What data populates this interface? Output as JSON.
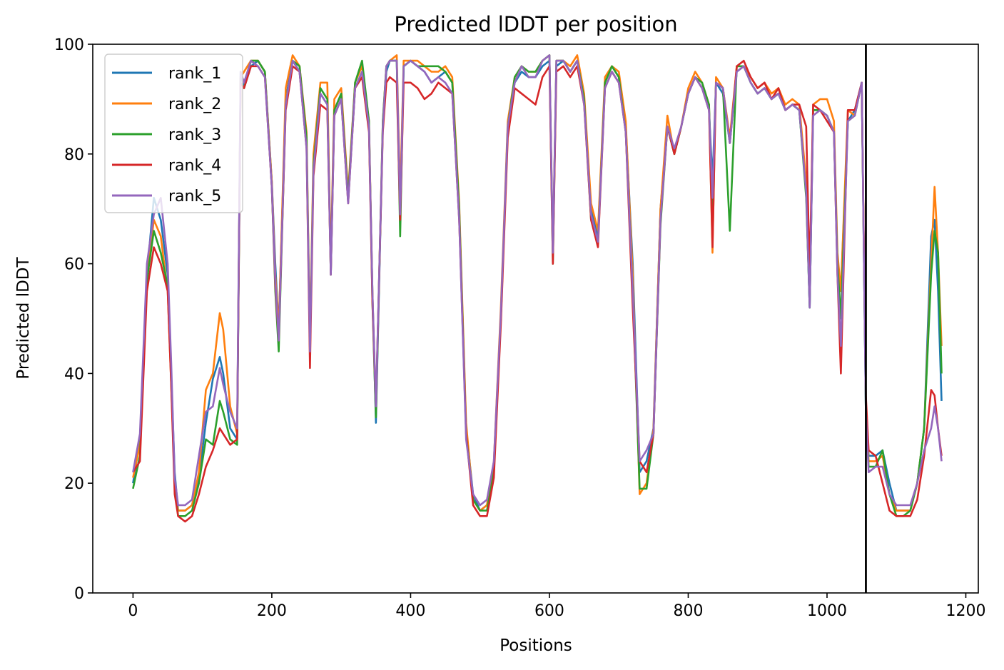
{
  "chart_data": {
    "type": "line",
    "title": "Predicted lDDT per position",
    "xlabel": "Positions",
    "ylabel": "Predicted lDDT",
    "xlim": [
      -58,
      1218
    ],
    "ylim": [
      0,
      100
    ],
    "xticks": [
      0,
      200,
      400,
      600,
      800,
      1000,
      1200
    ],
    "yticks": [
      0,
      20,
      40,
      60,
      80,
      100
    ],
    "grid": false,
    "legend_position": "top-left",
    "vline": {
      "x": 1056,
      "color": "#000000"
    },
    "x": [
      0,
      10,
      20,
      30,
      40,
      50,
      55,
      60,
      65,
      75,
      85,
      95,
      105,
      115,
      125,
      130,
      140,
      150,
      155,
      160,
      170,
      180,
      190,
      200,
      205,
      210,
      220,
      230,
      240,
      250,
      255,
      260,
      270,
      280,
      285,
      290,
      300,
      310,
      320,
      330,
      340,
      345,
      350,
      360,
      365,
      370,
      380,
      385,
      390,
      400,
      410,
      420,
      430,
      440,
      450,
      460,
      470,
      480,
      490,
      500,
      510,
      520,
      530,
      540,
      550,
      560,
      570,
      580,
      590,
      600,
      605,
      610,
      620,
      630,
      640,
      650,
      660,
      670,
      680,
      690,
      700,
      710,
      720,
      730,
      740,
      750,
      760,
      770,
      780,
      790,
      800,
      810,
      820,
      830,
      835,
      840,
      850,
      860,
      870,
      880,
      890,
      900,
      910,
      920,
      930,
      940,
      950,
      960,
      970,
      975,
      980,
      990,
      1000,
      1010,
      1015,
      1020,
      1030,
      1040,
      1050,
      1056,
      1060,
      1070,
      1080,
      1090,
      1100,
      1110,
      1120,
      1130,
      1140,
      1150,
      1155,
      1160,
      1165
    ],
    "series": [
      {
        "name": "rank_1",
        "color": "#1f77b4",
        "values": [
          20,
          28,
          58,
          72,
          68,
          58,
          40,
          22,
          15,
          15,
          16,
          21,
          31,
          39,
          43,
          40,
          30,
          28,
          95,
          92,
          96,
          97,
          95,
          75,
          60,
          48,
          90,
          97,
          95,
          82,
          45,
          78,
          91,
          89,
          60,
          88,
          91,
          72,
          92,
          95,
          85,
          55,
          31,
          85,
          95,
          97,
          97,
          70,
          96,
          97,
          96,
          95,
          93,
          94,
          95,
          93,
          70,
          30,
          18,
          15,
          16,
          23,
          50,
          85,
          93,
          95,
          94,
          94,
          96,
          97,
          62,
          96,
          97,
          95,
          97,
          90,
          70,
          65,
          93,
          96,
          94,
          85,
          60,
          22,
          24,
          30,
          70,
          85,
          80,
          85,
          91,
          94,
          92,
          88,
          75,
          93,
          91,
          82,
          95,
          96,
          93,
          91,
          92,
          90,
          91,
          88,
          89,
          88,
          73,
          52,
          88,
          88,
          87,
          84,
          60,
          55,
          86,
          88,
          93,
          33,
          25,
          25,
          26,
          20,
          15,
          15,
          15,
          20,
          30,
          65,
          68,
          55,
          35
        ]
      },
      {
        "name": "rank_2",
        "color": "#ff7f0e",
        "values": [
          21,
          27,
          57,
          68,
          65,
          55,
          38,
          20,
          15,
          15,
          16,
          22,
          37,
          40,
          51,
          48,
          34,
          29,
          94,
          95,
          97,
          97,
          95,
          75,
          58,
          48,
          92,
          98,
          96,
          84,
          46,
          80,
          93,
          93,
          60,
          90,
          92,
          73,
          93,
          96,
          86,
          55,
          33,
          86,
          96,
          97,
          98,
          72,
          97,
          97,
          97,
          96,
          95,
          95,
          96,
          94,
          71,
          31,
          17,
          15,
          16,
          24,
          52,
          86,
          94,
          96,
          95,
          95,
          97,
          98,
          62,
          97,
          97,
          96,
          98,
          91,
          71,
          66,
          94,
          96,
          95,
          86,
          58,
          18,
          20,
          30,
          70,
          87,
          80,
          85,
          92,
          95,
          93,
          89,
          62,
          94,
          92,
          83,
          96,
          96,
          94,
          92,
          93,
          91,
          92,
          89,
          90,
          89,
          75,
          55,
          89,
          90,
          90,
          86,
          62,
          55,
          88,
          87,
          93,
          35,
          24,
          24,
          25,
          18,
          15,
          15,
          15,
          20,
          30,
          60,
          74,
          62,
          45
        ]
      },
      {
        "name": "rank_3",
        "color": "#2ca02c",
        "values": [
          19,
          25,
          57,
          66,
          62,
          56,
          39,
          20,
          14,
          14,
          15,
          20,
          28,
          27,
          35,
          33,
          28,
          27,
          93,
          92,
          97,
          97,
          95,
          74,
          55,
          44,
          89,
          97,
          96,
          83,
          44,
          78,
          92,
          90,
          58,
          88,
          91,
          72,
          93,
          97,
          86,
          53,
          32,
          86,
          96,
          97,
          97,
          65,
          96,
          97,
          96,
          96,
          96,
          96,
          95,
          93,
          70,
          29,
          17,
          15,
          15,
          22,
          50,
          85,
          94,
          96,
          95,
          95,
          97,
          98,
          60,
          97,
          97,
          95,
          97,
          90,
          68,
          64,
          93,
          96,
          94,
          84,
          55,
          19,
          19,
          29,
          67,
          85,
          80,
          85,
          91,
          94,
          93,
          89,
          70,
          93,
          92,
          66,
          96,
          96,
          93,
          91,
          92,
          90,
          91,
          88,
          89,
          88,
          72,
          52,
          88,
          88,
          87,
          84,
          60,
          50,
          86,
          87,
          93,
          33,
          23,
          23,
          26,
          18,
          14,
          14,
          15,
          20,
          30,
          58,
          66,
          62,
          40
        ]
      },
      {
        "name": "rank_4",
        "color": "#d62728",
        "values": [
          22,
          24,
          55,
          63,
          60,
          55,
          38,
          18,
          14,
          13,
          14,
          18,
          23,
          26,
          30,
          29,
          27,
          28,
          93,
          92,
          96,
          96,
          94,
          74,
          56,
          46,
          88,
          96,
          95,
          81,
          41,
          76,
          89,
          88,
          58,
          87,
          90,
          71,
          92,
          94,
          84,
          53,
          34,
          84,
          93,
          94,
          93,
          68,
          93,
          93,
          92,
          90,
          91,
          93,
          92,
          91,
          68,
          29,
          16,
          14,
          14,
          21,
          49,
          83,
          92,
          91,
          90,
          89,
          94,
          96,
          60,
          95,
          96,
          94,
          96,
          89,
          68,
          63,
          92,
          95,
          93,
          84,
          52,
          24,
          22,
          29,
          68,
          85,
          80,
          85,
          91,
          94,
          92,
          88,
          63,
          93,
          92,
          82,
          96,
          97,
          94,
          92,
          93,
          90,
          92,
          88,
          89,
          89,
          85,
          58,
          89,
          88,
          86,
          84,
          58,
          40,
          88,
          88,
          93,
          36,
          26,
          25,
          20,
          15,
          14,
          14,
          14,
          17,
          25,
          37,
          36,
          30,
          25
        ]
      },
      {
        "name": "rank_5",
        "color": "#9467bd",
        "values": [
          22,
          29,
          60,
          69,
          72,
          60,
          42,
          21,
          16,
          16,
          17,
          25,
          33,
          34,
          41,
          38,
          33,
          30,
          95,
          93,
          97,
          96,
          94,
          74,
          57,
          46,
          89,
          97,
          95,
          81,
          44,
          77,
          91,
          89,
          58,
          87,
          90,
          71,
          92,
          95,
          85,
          55,
          34,
          85,
          96,
          97,
          97,
          69,
          96,
          97,
          96,
          95,
          93,
          94,
          93,
          91,
          68,
          28,
          18,
          16,
          17,
          24,
          51,
          85,
          93,
          96,
          94,
          94,
          97,
          98,
          62,
          97,
          97,
          95,
          97,
          89,
          69,
          64,
          92,
          95,
          93,
          84,
          55,
          24,
          26,
          29,
          68,
          85,
          81,
          85,
          91,
          94,
          92,
          88,
          72,
          93,
          92,
          82,
          95,
          96,
          93,
          91,
          92,
          90,
          91,
          88,
          89,
          88,
          73,
          52,
          87,
          88,
          87,
          84,
          58,
          45,
          86,
          87,
          93,
          33,
          22,
          23,
          23,
          18,
          16,
          16,
          16,
          20,
          26,
          30,
          34,
          30,
          24
        ]
      }
    ]
  }
}
